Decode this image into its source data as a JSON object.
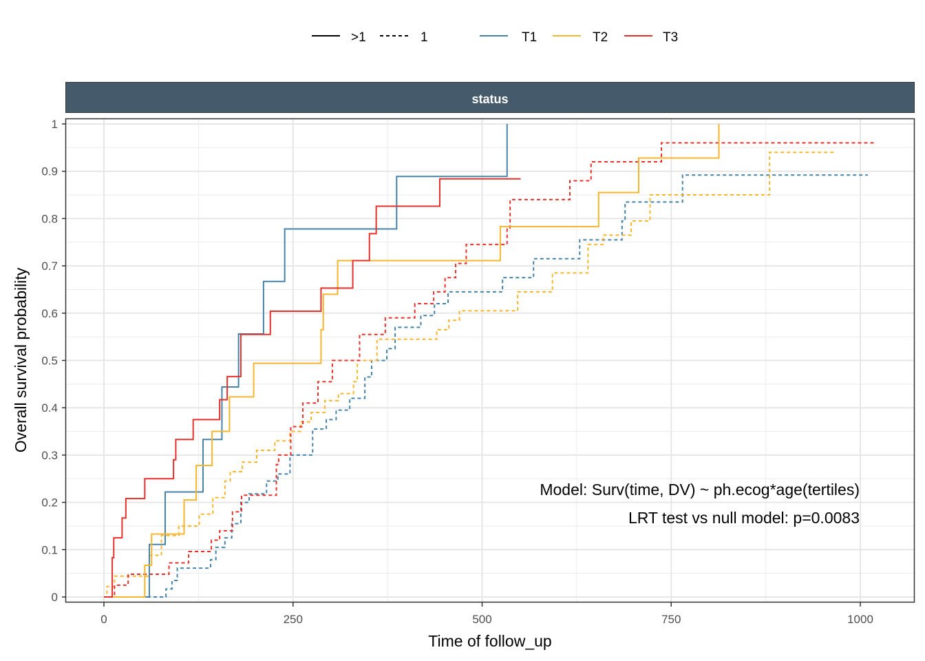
{
  "chart_data": {
    "type": "line",
    "subtype": "step (Kaplan-Meier cumulative)",
    "strip_label": "status",
    "xlabel": "Time of follow_up",
    "ylabel": "Overall survival probability",
    "xlim": [
      -50,
      1070
    ],
    "ylim": [
      0,
      1
    ],
    "x_ticks": [
      0,
      250,
      500,
      750,
      1000
    ],
    "x_tick_labels": [
      "0",
      "250",
      "500",
      "750",
      "1000"
    ],
    "y_ticks": [
      0,
      0.1,
      0.2,
      0.3,
      0.4,
      0.5,
      0.6,
      0.7,
      0.8,
      0.9,
      1
    ],
    "y_tick_labels": [
      "0",
      "0.1",
      "0.2",
      "0.3",
      "0.4",
      "0.5",
      "0.6",
      "0.7",
      "0.8",
      "0.9",
      "1"
    ],
    "grid": true,
    "legend_position": "top",
    "legend": {
      "linetypes": [
        {
          "label": ">1",
          "linetype": "solid"
        },
        {
          "label": "1",
          "linetype": "dashed"
        }
      ],
      "colors": [
        {
          "label": "T1",
          "color": "#4682a8"
        },
        {
          "label": "T2",
          "color": "#f7b52c"
        },
        {
          "label": "T3",
          "color": "#e8302a"
        }
      ]
    },
    "annotations": [
      "Model: Surv(time, DV) ~ ph.ecog*age(tertiles)",
      "LRT test vs null model: p=0.0083"
    ],
    "series": [
      {
        "name": "T1 >1",
        "group": "T1",
        "linetype": "solid",
        "color": "#4682a8",
        "x": [
          0,
          60,
          81,
          131,
          156,
          178,
          211,
          239,
          387,
          533
        ],
        "y": [
          0,
          0.111,
          0.222,
          0.333,
          0.444,
          0.556,
          0.667,
          0.778,
          0.889,
          1.0
        ],
        "x_end": 533
      },
      {
        "name": "T2 >1",
        "group": "T2",
        "linetype": "solid",
        "color": "#f7b52c",
        "x": [
          0,
          54,
          63,
          106,
          122,
          143,
          166,
          198,
          287,
          290,
          309,
          524,
          654,
          707,
          813
        ],
        "y": [
          0,
          0.067,
          0.133,
          0.205,
          0.278,
          0.35,
          0.423,
          0.494,
          0.565,
          0.64,
          0.711,
          0.783,
          0.855,
          0.928,
          1.0
        ],
        "x_end": 813
      },
      {
        "name": "T3 >1",
        "group": "T3",
        "linetype": "solid",
        "color": "#e8302a",
        "x": [
          0,
          11,
          13,
          24,
          29,
          54,
          92,
          95,
          118,
          153,
          163,
          181,
          220,
          287,
          329,
          351,
          360,
          444
        ],
        "y": [
          0,
          0.083,
          0.125,
          0.167,
          0.208,
          0.25,
          0.29,
          0.333,
          0.375,
          0.417,
          0.466,
          0.555,
          0.604,
          0.653,
          0.711,
          0.768,
          0.826,
          0.884
        ],
        "x_end": 551
      },
      {
        "name": "T1 1",
        "group": "T1",
        "linetype": "dashed",
        "color": "#4682a8",
        "x": [
          0,
          82,
          90,
          97,
          112,
          141,
          148,
          160,
          169,
          181,
          192,
          215,
          230,
          246,
          261,
          276,
          294,
          307,
          325,
          345,
          354,
          374,
          385,
          419,
          437,
          455,
          473,
          527,
          564,
          568,
          606,
          629,
          630,
          685,
          689,
          702,
          744,
          765
        ],
        "y": [
          0,
          0.017,
          0.035,
          0.061,
          0.061,
          0.079,
          0.105,
          0.125,
          0.155,
          0.2,
          0.218,
          0.245,
          0.26,
          0.3,
          0.3,
          0.355,
          0.375,
          0.395,
          0.42,
          0.465,
          0.5,
          0.525,
          0.57,
          0.595,
          0.62,
          0.645,
          0.645,
          0.675,
          0.675,
          0.715,
          0.715,
          0.755,
          0.755,
          0.795,
          0.835,
          0.835,
          0.835,
          0.892
        ],
        "x_end": 1010
      },
      {
        "name": "T2 1",
        "group": "T2",
        "linetype": "dashed",
        "color": "#f7b52c",
        "x": [
          0,
          4,
          14,
          60,
          76,
          99,
          126,
          144,
          160,
          167,
          183,
          202,
          226,
          246,
          260,
          274,
          292,
          310,
          330,
          335,
          347,
          361,
          435,
          440,
          456,
          470,
          547,
          584,
          593,
          640,
          660,
          697,
          722,
          786,
          880
        ],
        "y": [
          0,
          0.022,
          0.044,
          0.088,
          0.13,
          0.15,
          0.175,
          0.21,
          0.245,
          0.265,
          0.285,
          0.31,
          0.33,
          0.35,
          0.37,
          0.39,
          0.415,
          0.43,
          0.455,
          0.5,
          0.5,
          0.545,
          0.545,
          0.565,
          0.585,
          0.605,
          0.645,
          0.645,
          0.685,
          0.745,
          0.765,
          0.795,
          0.85,
          0.85,
          0.94
        ],
        "x_end": 965
      },
      {
        "name": "T3 1",
        "group": "T3",
        "linetype": "dashed",
        "color": "#e8302a",
        "x": [
          0,
          14,
          32,
          86,
          112,
          142,
          153,
          170,
          182,
          188,
          228,
          231,
          247,
          263,
          276,
          283,
          302,
          315,
          338,
          372,
          411,
          436,
          451,
          465,
          479,
          496,
          533,
          537,
          594,
          616,
          644,
          737
        ],
        "y": [
          0,
          0.025,
          0.048,
          0.072,
          0.096,
          0.12,
          0.14,
          0.18,
          0.215,
          0.215,
          0.28,
          0.3,
          0.36,
          0.41,
          0.41,
          0.455,
          0.5,
          0.5,
          0.555,
          0.59,
          0.62,
          0.645,
          0.675,
          0.705,
          0.745,
          0.745,
          0.78,
          0.84,
          0.84,
          0.88,
          0.92,
          0.96
        ],
        "x_end": 1018
      }
    ]
  }
}
